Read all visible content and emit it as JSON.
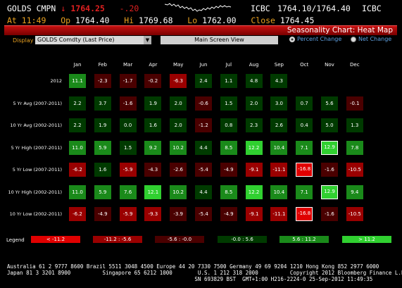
{
  "quote": {
    "ticker": "GOLDS",
    "source": "CMPN",
    "arrow": "↓",
    "last": "1764.25",
    "change": "-.20",
    "time_label": "At",
    "time": "11:49",
    "open_label": "Op",
    "open": "1764.40",
    "high_label": "Hi",
    "high": "1769.68",
    "low_label": "Lo",
    "low": "1762.00",
    "close_label": "Close",
    "close": "1764.45",
    "icbc1": "ICBC",
    "bid_ask": "1764.10/1764.40",
    "icbc2": "ICBC"
  },
  "title_bar": {
    "title": "Seasonality Chart: Heat Map"
  },
  "controls": {
    "display_label": "Display",
    "display_value": "GOLDS Comdty (Last Price)",
    "main_screen_button": "Main Screen View",
    "radio_percent": "Percent Change",
    "radio_net": "Net Change",
    "selected_mode": "percent"
  },
  "heatmap": {
    "months": [
      "Jan",
      "Feb",
      "Mar",
      "Apr",
      "May",
      "Jun",
      "Jul",
      "Aug",
      "Sep",
      "Oct",
      "Nov",
      "Dec"
    ],
    "rows": [
      {
        "label": "2012",
        "values": [
          "11.1",
          "-2.3",
          "-1.7",
          "-0.2",
          "-6.3",
          "2.4",
          "1.1",
          "4.8",
          "4.3",
          "",
          "",
          ""
        ]
      },
      {
        "label": "5 Yr Avg (2007-2011)",
        "values": [
          "2.2",
          "3.7",
          "-1.6",
          "1.9",
          "2.0",
          "-0.6",
          "1.5",
          "2.0",
          "3.0",
          "0.7",
          "5.6",
          "-0.1"
        ]
      },
      {
        "label": "10 Yr Avg (2002-2011)",
        "values": [
          "2.2",
          "1.9",
          "0.0",
          "1.6",
          "2.0",
          "-1.2",
          "0.8",
          "2.3",
          "2.6",
          "0.4",
          "5.0",
          "1.3"
        ]
      },
      {
        "label": "5 Yr High (2007-2011)",
        "values": [
          "11.0",
          "5.9",
          "1.5",
          "9.2",
          "10.2",
          "4.4",
          "8.5",
          "12.2",
          "10.4",
          "7.1",
          "12.9",
          "7.8"
        ]
      },
      {
        "label": "5 Yr Low (2007-2011)",
        "values": [
          "-6.2",
          "1.6",
          "-5.9",
          "-4.3",
          "-2.6",
          "-5.4",
          "-4.9",
          "-9.1",
          "-11.1",
          "-16.8",
          "-1.6",
          "-10.5"
        ]
      },
      {
        "label": "10 Yr High (2002-2011)",
        "values": [
          "11.0",
          "5.9",
          "7.6",
          "12.1",
          "10.2",
          "4.4",
          "8.5",
          "12.2",
          "10.4",
          "7.1",
          "12.9",
          "9.4"
        ]
      },
      {
        "label": "10 Yr Low (2002-2011)",
        "values": [
          "-6.2",
          "-4.9",
          "-5.9",
          "-9.3",
          "-3.9",
          "-5.4",
          "-4.9",
          "-9.1",
          "-11.1",
          "-16.8",
          "-1.6",
          "-10.5"
        ]
      }
    ],
    "highlighted_cells": [
      [
        3,
        10
      ],
      [
        4,
        9
      ],
      [
        5,
        10
      ],
      [
        6,
        9
      ]
    ]
  },
  "legend": {
    "title": "Legend",
    "bins": [
      {
        "label": "< -11.2",
        "color": "#e00000"
      },
      {
        "label": "-11.2 : -5.6",
        "color": "#9a0000"
      },
      {
        "label": "-5.6 : -0.0",
        "color": "#4a0000"
      },
      {
        "label": "-0.0 : 5.6",
        "color": "#003a00"
      },
      {
        "label": "5.6 : 11.2",
        "color": "#1a8a1a"
      },
      {
        "label": "> 11.2",
        "color": "#30d030"
      }
    ]
  },
  "footer": {
    "line1": "Australia 61 2 9777 8600 Brazil 5511 3048 4500 Europe 44 20 7330 7500 Germany 49 69 9204 1210 Hong Kong 852 2977 6000",
    "line2": "Japan 81 3 3201 8900          Singapore 65 6212 1000        U.S. 1 212 318 2000          Copyright 2012 Bloomberg Finance L.P.",
    "line3": "                                                           SN 693829 BST  GMT+1:00 H216-2224-0 25-Sep-2012 11:49:35"
  }
}
